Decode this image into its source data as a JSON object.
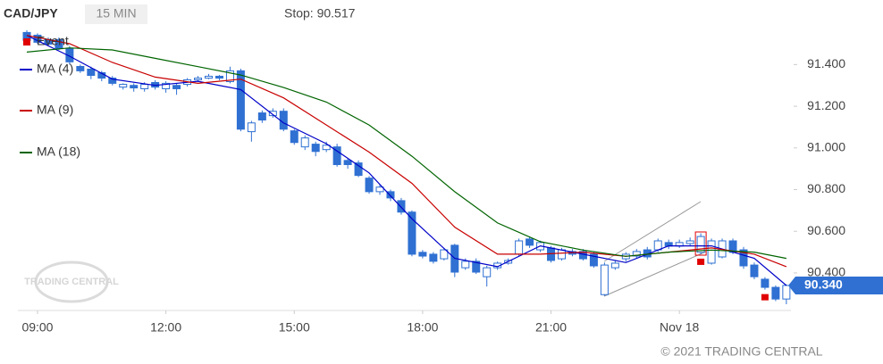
{
  "chart_data": {
    "type": "candlestick",
    "title": "CAD/JPY",
    "interval": "15 MIN",
    "stop_label": "Stop: 90.517",
    "watermark": "TRADING CENTRAL",
    "copyright": "© 2021 TRADING CENTRAL",
    "last_price": {
      "value": 90.34,
      "label": "90.340"
    },
    "candle_color": "#2f70d2",
    "categories": [
      null,
      "09:00",
      null,
      null,
      null,
      null,
      null,
      null,
      null,
      null,
      null,
      null,
      null,
      "12:00",
      null,
      null,
      null,
      null,
      null,
      null,
      null,
      null,
      null,
      null,
      null,
      "15:00",
      null,
      null,
      null,
      null,
      null,
      null,
      null,
      null,
      null,
      null,
      null,
      "18:00",
      null,
      null,
      null,
      null,
      null,
      null,
      null,
      null,
      null,
      null,
      null,
      "21:00",
      null,
      null,
      null,
      null,
      null,
      null,
      null,
      null,
      null,
      null,
      null,
      "Nov 18",
      null,
      null,
      null,
      null,
      null,
      null,
      null,
      null,
      null,
      null
    ],
    "open": [
      91.554,
      91.541,
      91.52,
      91.52,
      91.477,
      91.391,
      91.378,
      91.361,
      91.335,
      91.292,
      91.3,
      91.284,
      91.314,
      91.284,
      91.3,
      91.305,
      91.327,
      91.335,
      91.344,
      91.318,
      91.37,
      91.078,
      91.168,
      91.155,
      91.176,
      91.082,
      91.005,
      91.018,
      90.992,
      91.005,
      90.94,
      90.928,
      90.855,
      90.79,
      90.79,
      90.747,
      90.692,
      90.499,
      90.49,
      90.468,
      90.533,
      90.425,
      90.456,
      90.382,
      90.425,
      90.447,
      90.49,
      90.563,
      90.511,
      90.52,
      90.468,
      90.503,
      90.503,
      90.49,
      90.296,
      90.425,
      90.468,
      90.481,
      90.511,
      90.511,
      90.546,
      90.529,
      90.541,
      90.499,
      90.447,
      90.477,
      90.554,
      90.511,
      90.438,
      90.37,
      90.331,
      90.275
    ],
    "high": [
      91.565,
      91.55,
      91.53,
      91.53,
      91.49,
      91.4,
      91.39,
      91.37,
      91.345,
      91.31,
      91.31,
      91.315,
      91.325,
      91.32,
      91.31,
      91.335,
      91.345,
      91.355,
      91.35,
      91.39,
      91.38,
      91.13,
      91.18,
      91.19,
      91.19,
      91.09,
      91.06,
      91.03,
      91.03,
      91.02,
      90.95,
      90.94,
      90.865,
      90.825,
      90.8,
      90.76,
      90.7,
      90.51,
      90.5,
      90.52,
      90.54,
      90.47,
      90.47,
      90.435,
      90.455,
      90.47,
      90.565,
      90.575,
      90.555,
      90.53,
      90.52,
      90.515,
      90.515,
      90.5,
      90.45,
      90.46,
      90.5,
      90.515,
      90.525,
      90.565,
      90.56,
      90.56,
      90.57,
      90.59,
      90.565,
      90.565,
      90.565,
      90.525,
      90.45,
      90.38,
      90.34,
      90.345
    ],
    "low": [
      91.505,
      91.5,
      91.49,
      91.47,
      91.4,
      91.36,
      91.33,
      91.32,
      91.3,
      91.28,
      91.27,
      91.27,
      91.28,
      91.265,
      91.255,
      91.295,
      91.32,
      91.33,
      91.325,
      91.31,
      91.08,
      91.03,
      91.12,
      91.145,
      91.08,
      91.015,
      90.99,
      90.96,
      90.98,
      90.91,
      90.9,
      90.86,
      90.78,
      90.775,
      90.745,
      90.68,
      90.48,
      90.47,
      90.445,
      90.46,
      90.38,
      90.415,
      90.395,
      90.335,
      90.415,
      90.44,
      90.48,
      90.52,
      90.5,
      90.45,
      90.46,
      90.48,
      90.46,
      90.425,
      90.29,
      90.415,
      90.455,
      90.47,
      90.465,
      90.5,
      90.515,
      90.52,
      90.53,
      90.49,
      90.44,
      90.47,
      90.49,
      90.42,
      90.37,
      90.32,
      90.265,
      90.25
    ],
    "close": [
      91.516,
      91.507,
      91.498,
      91.477,
      91.413,
      91.37,
      91.348,
      91.335,
      91.31,
      91.305,
      91.288,
      91.305,
      91.292,
      91.31,
      91.284,
      91.327,
      91.335,
      91.344,
      91.335,
      91.37,
      91.09,
      91.12,
      91.134,
      91.176,
      91.09,
      91.026,
      91.048,
      90.983,
      91.013,
      90.92,
      90.92,
      90.868,
      90.79,
      90.812,
      90.76,
      90.692,
      90.49,
      90.481,
      90.456,
      90.511,
      90.404,
      90.456,
      90.404,
      90.425,
      90.447,
      90.46,
      90.554,
      90.533,
      90.546,
      90.46,
      90.511,
      90.49,
      90.468,
      90.434,
      90.438,
      90.447,
      90.49,
      90.503,
      90.477,
      90.554,
      90.529,
      90.546,
      90.554,
      90.575,
      90.554,
      90.554,
      90.499,
      90.434,
      90.382,
      90.331,
      90.275,
      90.34
    ],
    "series": [
      {
        "name": "MA (4)",
        "color": "#0000c8",
        "x": [
          0,
          4,
          8,
          12,
          16,
          20,
          24,
          28,
          32,
          36,
          40,
          44,
          48,
          52,
          56,
          60,
          64,
          68,
          71
        ],
        "values": [
          91.54,
          91.44,
          91.33,
          91.3,
          91.32,
          91.28,
          91.12,
          91.02,
          90.88,
          90.66,
          90.47,
          90.43,
          90.53,
          90.49,
          90.45,
          90.53,
          90.53,
          90.47,
          90.34
        ]
      },
      {
        "name": "MA (9)",
        "color": "#c80000",
        "x": [
          0,
          4,
          8,
          12,
          16,
          20,
          24,
          28,
          32,
          36,
          40,
          44,
          48,
          52,
          56,
          60,
          64,
          68,
          71
        ],
        "values": [
          91.54,
          91.5,
          91.41,
          91.34,
          91.31,
          91.33,
          91.24,
          91.11,
          90.98,
          90.83,
          90.62,
          90.49,
          90.49,
          90.5,
          90.48,
          90.5,
          90.52,
          90.49,
          90.43
        ]
      },
      {
        "name": "MA (18)",
        "color": "#006400",
        "x": [
          0,
          4,
          8,
          12,
          16,
          20,
          24,
          28,
          32,
          36,
          40,
          44,
          48,
          52,
          56,
          60,
          64,
          68,
          71
        ],
        "values": [
          91.46,
          91.48,
          91.47,
          91.43,
          91.39,
          91.35,
          91.29,
          91.22,
          91.11,
          90.96,
          90.79,
          90.64,
          90.55,
          90.51,
          90.48,
          90.5,
          90.51,
          90.5,
          90.47
        ]
      }
    ],
    "events": {
      "name": "Event",
      "color": "#e00000",
      "x": [
        63,
        69
      ]
    },
    "ylim": [
      90.22,
      91.56
    ],
    "yticks": [
      {
        "value": 90.4,
        "label": "90.400"
      },
      {
        "value": 90.6,
        "label": "90.600"
      },
      {
        "value": 90.8,
        "label": "90.800"
      },
      {
        "value": 91.0,
        "label": "91.000"
      },
      {
        "value": 91.2,
        "label": "91.200"
      },
      {
        "value": 91.4,
        "label": "91.400"
      }
    ]
  }
}
